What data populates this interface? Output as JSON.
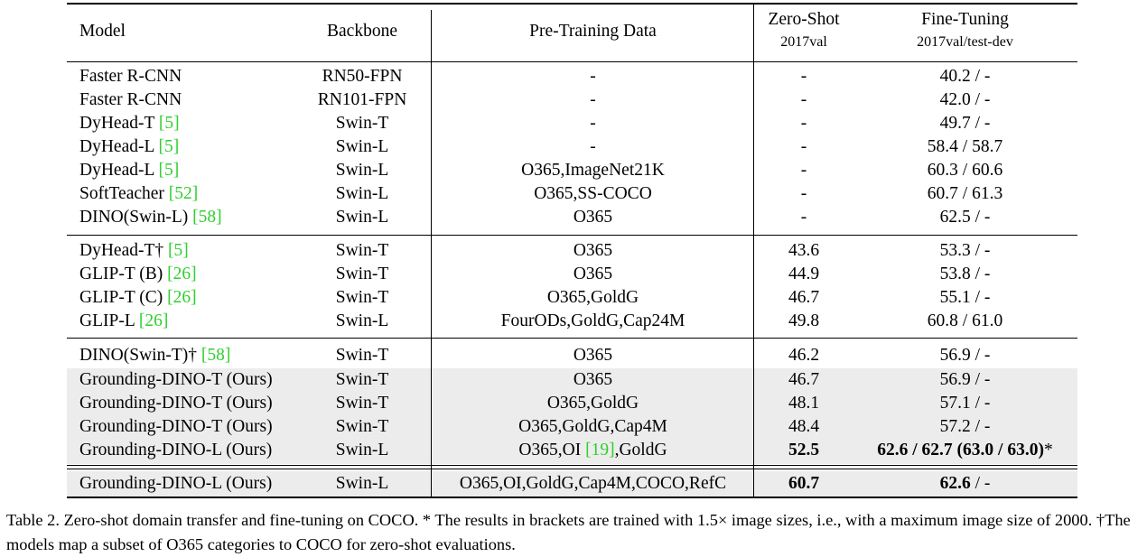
{
  "header": {
    "model": "Model",
    "backbone": "Backbone",
    "pretraining": "Pre-Training Data",
    "zeroshot": "Zero-Shot",
    "zeroshot_sub": "2017val",
    "finetuning": "Fine-Tuning",
    "finetuning_sub": "2017val/test-dev"
  },
  "rows": [
    {
      "model": "Faster R-CNN",
      "cite": "",
      "suffix": "",
      "backbone": "RN50-FPN",
      "data": "-",
      "cite_data": "",
      "data_suffix": "",
      "zs": "-",
      "ft": "40.2 / -",
      "zs_bold": false,
      "ft_bold": false,
      "shaded": false
    },
    {
      "model": "Faster R-CNN",
      "cite": "",
      "suffix": "",
      "backbone": "RN101-FPN",
      "data": "-",
      "cite_data": "",
      "data_suffix": "",
      "zs": "-",
      "ft": "42.0 / -",
      "zs_bold": false,
      "ft_bold": false,
      "shaded": false
    },
    {
      "model": "DyHead-T ",
      "cite": "[5]",
      "suffix": "",
      "backbone": "Swin-T",
      "data": "-",
      "cite_data": "",
      "data_suffix": "",
      "zs": "-",
      "ft": "49.7 / -",
      "zs_bold": false,
      "ft_bold": false,
      "shaded": false
    },
    {
      "model": "DyHead-L ",
      "cite": "[5]",
      "suffix": "",
      "backbone": "Swin-L",
      "data": "-",
      "cite_data": "",
      "data_suffix": "",
      "zs": "-",
      "ft": "58.4 / 58.7",
      "zs_bold": false,
      "ft_bold": false,
      "shaded": false
    },
    {
      "model": "DyHead-L ",
      "cite": "[5]",
      "suffix": "",
      "backbone": "Swin-L",
      "data": "O365,ImageNet21K",
      "cite_data": "",
      "data_suffix": "",
      "zs": "-",
      "ft": "60.3 / 60.6",
      "zs_bold": false,
      "ft_bold": false,
      "shaded": false
    },
    {
      "model": "SoftTeacher ",
      "cite": "[52]",
      "suffix": "",
      "backbone": "Swin-L",
      "data": "O365,SS-COCO",
      "cite_data": "",
      "data_suffix": "",
      "zs": "-",
      "ft": "60.7 / 61.3",
      "zs_bold": false,
      "ft_bold": false,
      "shaded": false
    },
    {
      "model": "DINO(Swin-L) ",
      "cite": "[58]",
      "suffix": "",
      "backbone": "Swin-L",
      "data": "O365",
      "cite_data": "",
      "data_suffix": "",
      "zs": "-",
      "ft": "62.5 / -",
      "zs_bold": false,
      "ft_bold": false,
      "shaded": false
    },
    {
      "model": "DyHead-T† ",
      "cite": "[5]",
      "suffix": "",
      "backbone": "Swin-T",
      "data": "O365",
      "cite_data": "",
      "data_suffix": "",
      "zs": "43.6",
      "ft": "53.3 / -",
      "zs_bold": false,
      "ft_bold": false,
      "shaded": false
    },
    {
      "model": "GLIP-T (B) ",
      "cite": "[26]",
      "suffix": "",
      "backbone": "Swin-T",
      "data": "O365",
      "cite_data": "",
      "data_suffix": "",
      "zs": "44.9",
      "ft": "53.8 / -",
      "zs_bold": false,
      "ft_bold": false,
      "shaded": false
    },
    {
      "model": "GLIP-T (C) ",
      "cite": "[26]",
      "suffix": "",
      "backbone": "Swin-T",
      "data": "O365,GoldG",
      "cite_data": "",
      "data_suffix": "",
      "zs": "46.7",
      "ft": "55.1 / -",
      "zs_bold": false,
      "ft_bold": false,
      "shaded": false
    },
    {
      "model": "GLIP-L ",
      "cite": "[26]",
      "suffix": "",
      "backbone": "Swin-L",
      "data": "FourODs,GoldG,Cap24M",
      "cite_data": "",
      "data_suffix": "",
      "zs": "49.8",
      "ft": "60.8 / 61.0",
      "zs_bold": false,
      "ft_bold": false,
      "shaded": false
    },
    {
      "model": "DINO(Swin-T)† ",
      "cite": "[58]",
      "suffix": "",
      "backbone": "Swin-T",
      "data": "O365",
      "cite_data": "",
      "data_suffix": "",
      "zs": "46.2",
      "ft": "56.9 / -",
      "zs_bold": false,
      "ft_bold": false,
      "shaded": false
    },
    {
      "model": "Grounding-DINO-T (Ours)",
      "cite": "",
      "suffix": "",
      "backbone": "Swin-T",
      "data": "O365",
      "cite_data": "",
      "data_suffix": "",
      "zs": "46.7",
      "ft": "56.9 / -",
      "zs_bold": false,
      "ft_bold": false,
      "shaded": true
    },
    {
      "model": "Grounding-DINO-T (Ours)",
      "cite": "",
      "suffix": "",
      "backbone": "Swin-T",
      "data": "O365,GoldG",
      "cite_data": "",
      "data_suffix": "",
      "zs": "48.1",
      "ft": "57.1 / -",
      "zs_bold": false,
      "ft_bold": false,
      "shaded": true
    },
    {
      "model": "Grounding-DINO-T (Ours)",
      "cite": "",
      "suffix": "",
      "backbone": "Swin-T",
      "data": "O365,GoldG,Cap4M",
      "cite_data": "",
      "data_suffix": "",
      "zs": "48.4",
      "ft": "57.2 / -",
      "zs_bold": false,
      "ft_bold": false,
      "shaded": true
    },
    {
      "model": "Grounding-DINO-L (Ours)",
      "cite": "",
      "suffix": "",
      "backbone": "Swin-L",
      "data": "O365,OI ",
      "cite_data": "[19]",
      "data_suffix": ",GoldG",
      "zs": "52.5",
      "ft": "62.6 / 62.7 (63.0 / 63.0)",
      "ft_tail": "*",
      "zs_bold": true,
      "ft_bold": true,
      "shaded": true
    },
    {
      "model": "Grounding-DINO-L (Ours)",
      "cite": "",
      "suffix": "",
      "backbone": "Swin-L",
      "data": "O365,OI,GoldG,Cap4M,COCO,RefC",
      "cite_data": "",
      "data_suffix": "",
      "zs": "60.7",
      "ft": "62.6",
      "ft_tail": " / -",
      "zs_bold": true,
      "ft_bold": true,
      "shaded": true
    }
  ],
  "caption": "Table 2. Zero-shot domain transfer and fine-tuning on COCO. * The results in brackets are trained with 1.5× image sizes, i.e., with a maximum image size of 2000. †The models map a subset of O365 categories to COCO for zero-shot evaluations."
}
